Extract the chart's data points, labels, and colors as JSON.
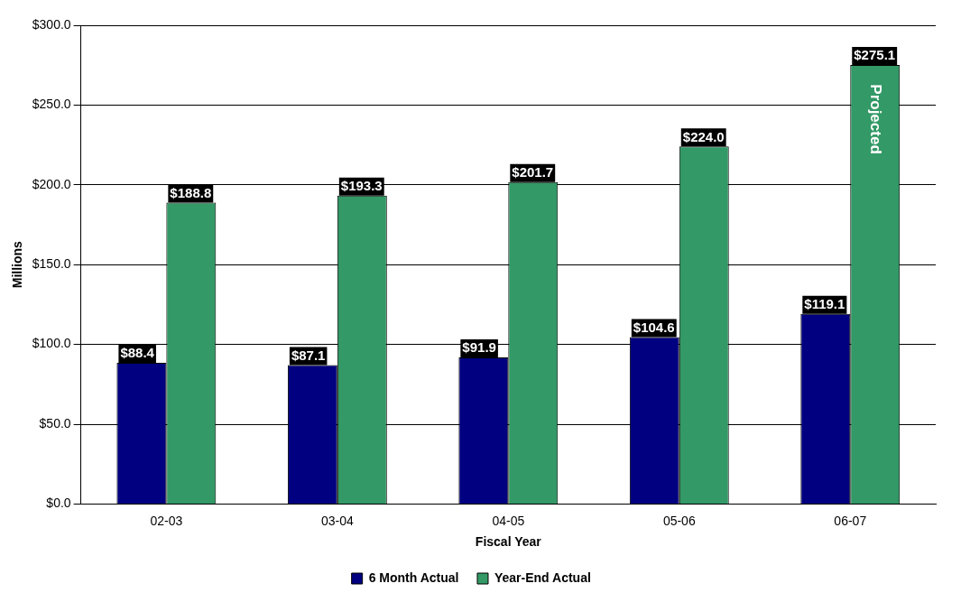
{
  "chart_data": {
    "type": "bar",
    "xlabel": "Fiscal Year",
    "ylabel": "Millions",
    "categories": [
      "02-03",
      "03-04",
      "04-05",
      "05-06",
      "06-07"
    ],
    "series": [
      {
        "name": "6 Month Actual",
        "color": "#000080",
        "values": [
          88.4,
          87.1,
          91.9,
          104.6,
          119.1
        ],
        "value_labels": [
          "$88.4",
          "$87.1",
          "$91.9",
          "$104.6",
          "$119.1"
        ]
      },
      {
        "name": "Year-End Actual",
        "color": "#339966",
        "values": [
          188.8,
          193.3,
          201.7,
          224.0,
          275.1
        ],
        "value_labels": [
          "$188.8",
          "$193.3",
          "$201.7",
          "$224.0",
          "$275.1"
        ]
      }
    ],
    "ylim": [
      0,
      300
    ],
    "yticks": [
      {
        "value": 0,
        "label": "$0.0"
      },
      {
        "value": 50,
        "label": "$50.0"
      },
      {
        "value": 100,
        "label": "$100.0"
      },
      {
        "value": 150,
        "label": "$150.0"
      },
      {
        "value": 200,
        "label": "$200.0"
      },
      {
        "value": 250,
        "label": "$250.0"
      },
      {
        "value": 300,
        "label": "$300.0"
      }
    ],
    "grid": "y",
    "legend": "bottom",
    "annotations": [
      "Projected"
    ]
  }
}
